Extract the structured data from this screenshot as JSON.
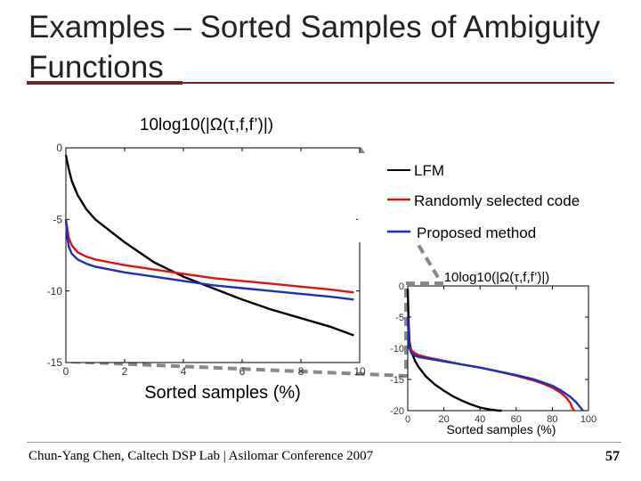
{
  "slide": {
    "title": "Examples – Sorted Samples of Ambiguity Functions",
    "footer": "Chun-Yang Chen, Caltech DSP Lab | Asilomar Conference 2007",
    "page_number": "57"
  },
  "chart_data": [
    {
      "type": "line",
      "title": "10log10(|Ω(τ,f,f’)|)",
      "xlabel": "Sorted samples (%)",
      "ylabel": "",
      "xlim": [
        0,
        10
      ],
      "ylim": [
        -15,
        0
      ],
      "xticks": [
        "0",
        "2",
        "4",
        "6",
        "8",
        "10"
      ],
      "yticks": [
        "0",
        "-5",
        "-10",
        "-15"
      ],
      "legend_position": "top-right",
      "series": [
        {
          "name": "LFM",
          "color": "#000000",
          "x": [
            0,
            0.1,
            0.2,
            0.4,
            0.7,
            1.0,
            1.5,
            2.0,
            3.0,
            4.0,
            5.0,
            6.0,
            7.0,
            8.0,
            9.0,
            9.8
          ],
          "y": [
            -0.5,
            -1.5,
            -2.3,
            -3.3,
            -4.3,
            -5.0,
            -5.8,
            -6.6,
            -8.0,
            -9.0,
            -9.8,
            -10.6,
            -11.3,
            -11.9,
            -12.5,
            -13.1
          ]
        },
        {
          "name": "Randomly selected code",
          "color": "#dd1111",
          "x": [
            0,
            0.05,
            0.1,
            0.2,
            0.4,
            0.7,
            1.0,
            1.5,
            2.0,
            3.0,
            4.0,
            5.0,
            6.0,
            7.0,
            8.0,
            9.0,
            9.8
          ],
          "y": [
            -5.0,
            -5.7,
            -6.3,
            -6.8,
            -7.3,
            -7.6,
            -7.8,
            -8.0,
            -8.2,
            -8.5,
            -8.8,
            -9.1,
            -9.3,
            -9.5,
            -9.7,
            -9.9,
            -10.1
          ]
        },
        {
          "name": "Proposed method",
          "color": "#1a2fbb",
          "x": [
            0,
            0.05,
            0.1,
            0.2,
            0.4,
            0.7,
            1.0,
            1.5,
            2.0,
            3.0,
            4.0,
            5.0,
            6.0,
            7.0,
            8.0,
            9.0,
            9.8
          ],
          "y": [
            -5.0,
            -6.3,
            -6.9,
            -7.4,
            -7.8,
            -8.1,
            -8.3,
            -8.5,
            -8.7,
            -9.0,
            -9.3,
            -9.6,
            -9.8,
            -10.0,
            -10.2,
            -10.4,
            -10.6
          ]
        }
      ]
    },
    {
      "type": "line",
      "title": "10log10(|Ω(τ,f,f’)|)",
      "xlabel": "Sorted samples (%)",
      "ylabel": "",
      "xlim": [
        0,
        100
      ],
      "ylim": [
        -20,
        0
      ],
      "xticks": [
        "0",
        "20",
        "40",
        "60",
        "80",
        "100"
      ],
      "yticks": [
        "0",
        "-5",
        "-10",
        "-15",
        "-20"
      ],
      "series": [
        {
          "name": "LFM",
          "color": "#000000",
          "x": [
            0,
            0.5,
            1,
            2,
            4,
            6,
            10,
            15,
            20,
            25,
            30,
            35,
            40,
            45,
            50,
            52
          ],
          "y": [
            -0.5,
            -6,
            -9,
            -10.5,
            -12,
            -13,
            -14.5,
            -15.8,
            -16.8,
            -17.7,
            -18.4,
            -19.0,
            -19.5,
            -19.8,
            -20,
            -20
          ]
        },
        {
          "name": "Randomly selected code",
          "color": "#dd1111",
          "x": [
            0,
            0.5,
            1,
            2,
            4,
            6,
            10,
            20,
            30,
            40,
            50,
            60,
            70,
            75,
            80,
            85,
            88,
            90,
            91,
            92
          ],
          "y": [
            -5,
            -8,
            -9.5,
            -10.3,
            -10.8,
            -11.1,
            -11.4,
            -12.0,
            -12.6,
            -13.1,
            -13.7,
            -14.4,
            -15.2,
            -15.7,
            -16.3,
            -17.2,
            -18.0,
            -18.8,
            -19.5,
            -20
          ]
        },
        {
          "name": "Proposed method",
          "color": "#1a2fbb",
          "x": [
            0,
            0.5,
            1,
            2,
            4,
            6,
            10,
            20,
            30,
            40,
            50,
            60,
            70,
            75,
            80,
            85,
            90,
            93,
            95,
            97
          ],
          "y": [
            -5,
            -8.5,
            -10,
            -10.8,
            -11.2,
            -11.4,
            -11.6,
            -12.1,
            -12.6,
            -13.1,
            -13.7,
            -14.3,
            -15.0,
            -15.5,
            -16.0,
            -16.8,
            -17.8,
            -18.6,
            -19.3,
            -20
          ]
        }
      ]
    }
  ]
}
